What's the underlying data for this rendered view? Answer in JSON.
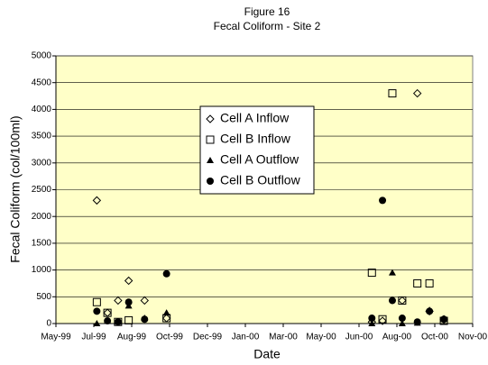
{
  "chart_data": {
    "type": "scatter",
    "title": "Figure 16",
    "subtitle": "Fecal Coliform - Site 2",
    "x_label": "Date",
    "y_label": "Fecal Coliform (col/100ml)",
    "xlim": [
      0,
      550
    ],
    "xticks": [
      {
        "value": 0,
        "label": "May-99"
      },
      {
        "value": 50,
        "label": "Jul-99"
      },
      {
        "value": 100,
        "label": "Aug-99"
      },
      {
        "value": 150,
        "label": "Oct-99"
      },
      {
        "value": 200,
        "label": "Dec-99"
      },
      {
        "value": 250,
        "label": "Jan-00"
      },
      {
        "value": 300,
        "label": "Mar-00"
      },
      {
        "value": 350,
        "label": "May-00"
      },
      {
        "value": 400,
        "label": "Jun-00"
      },
      {
        "value": 450,
        "label": "Aug-00"
      },
      {
        "value": 500,
        "label": "Oct-00"
      },
      {
        "value": 550,
        "label": "Nov-00"
      }
    ],
    "ylim": [
      0,
      5000
    ],
    "yticks": [
      0,
      500,
      1000,
      1500,
      2000,
      2500,
      3000,
      3500,
      4000,
      4500,
      5000
    ],
    "grid": true,
    "legend": "center",
    "series": [
      {
        "name": "Cell A Inflow",
        "color": "#000000",
        "marker": "diamond",
        "x": [
          54,
          68,
          82,
          96,
          117,
          146,
          417,
          431,
          457,
          477,
          493,
          512
        ],
        "values": [
          2300,
          200,
          430,
          800,
          430,
          100,
          30,
          50,
          430,
          4300,
          230,
          80
        ]
      },
      {
        "name": "Cell B Inflow",
        "color": "#000000",
        "marker": "square",
        "x": [
          54,
          68,
          82,
          96,
          146,
          417,
          431,
          444,
          457,
          477,
          493,
          512
        ],
        "values": [
          400,
          200,
          30,
          60,
          100,
          950,
          80,
          4300,
          430,
          750,
          750,
          50
        ]
      },
      {
        "name": "Cell A Outflow",
        "color": "#000000",
        "marker": "triangle",
        "x": [
          54,
          68,
          82,
          96,
          117,
          146,
          417,
          444,
          457,
          477,
          493,
          512
        ],
        "values": [
          0,
          50,
          30,
          330,
          100,
          200,
          0,
          950,
          0,
          10,
          250,
          80
        ]
      },
      {
        "name": "Cell B Outflow",
        "color": "#000000",
        "marker": "circle",
        "x": [
          54,
          68,
          82,
          96,
          117,
          146,
          417,
          431,
          444,
          457,
          477,
          493,
          512
        ],
        "values": [
          230,
          50,
          30,
          400,
          80,
          930,
          100,
          2300,
          430,
          100,
          30,
          230,
          80
        ]
      }
    ]
  }
}
